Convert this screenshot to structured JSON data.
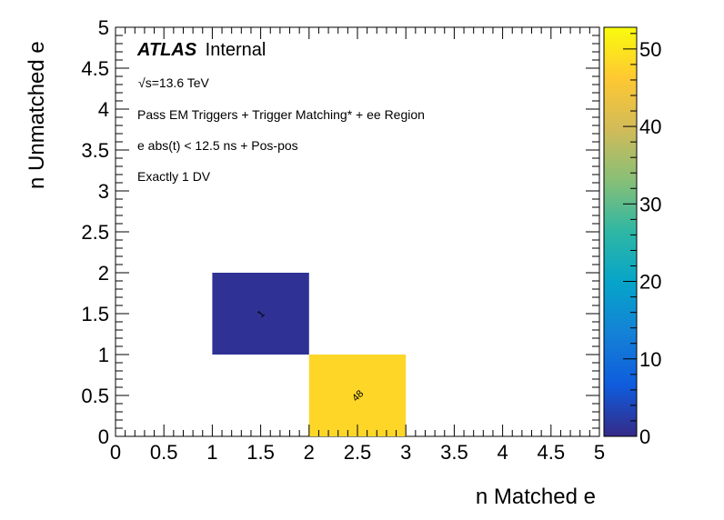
{
  "chart_data": {
    "type": "heatmap",
    "xlabel": "n Matched e",
    "ylabel": "n Unmatched e",
    "xlim": [
      0,
      5
    ],
    "ylim": [
      0,
      5
    ],
    "x_ticks": [
      "0",
      "0.5",
      "1",
      "1.5",
      "2",
      "2.5",
      "3",
      "3.5",
      "4",
      "4.5",
      "5"
    ],
    "y_ticks": [
      "0",
      "0.5",
      "1",
      "1.5",
      "2",
      "2.5",
      "3",
      "3.5",
      "4",
      "4.5",
      "5"
    ],
    "z_range": [
      0,
      52.8
    ],
    "z_ticks": [
      "0",
      "10",
      "20",
      "30",
      "40",
      "50"
    ],
    "cells": [
      {
        "x_range": [
          1,
          2
        ],
        "y_range": [
          1,
          2
        ],
        "value": 1,
        "label": "1"
      },
      {
        "x_range": [
          2,
          3
        ],
        "y_range": [
          0,
          1
        ],
        "value": 48,
        "label": "48"
      }
    ],
    "annotations": {
      "atlas_bold": "ATLAS",
      "atlas_rest": "Internal",
      "energy_sqrt": "√",
      "energy_rest": "s=13.6 TeV",
      "line1": "Pass EM Triggers + Trigger Matching* + ee Region",
      "line2": "e abs(t) < 12.5 ns + Pos-pos",
      "line3": "Exactly 1 DV"
    },
    "colormap": "parula-like",
    "colorscale_stops": [
      "#352a87",
      "#0f5cdd",
      "#1481d6",
      "#06a4ca",
      "#2eb7a4",
      "#87bf77",
      "#d1bb59",
      "#fec832",
      "#f9fb0e"
    ]
  }
}
